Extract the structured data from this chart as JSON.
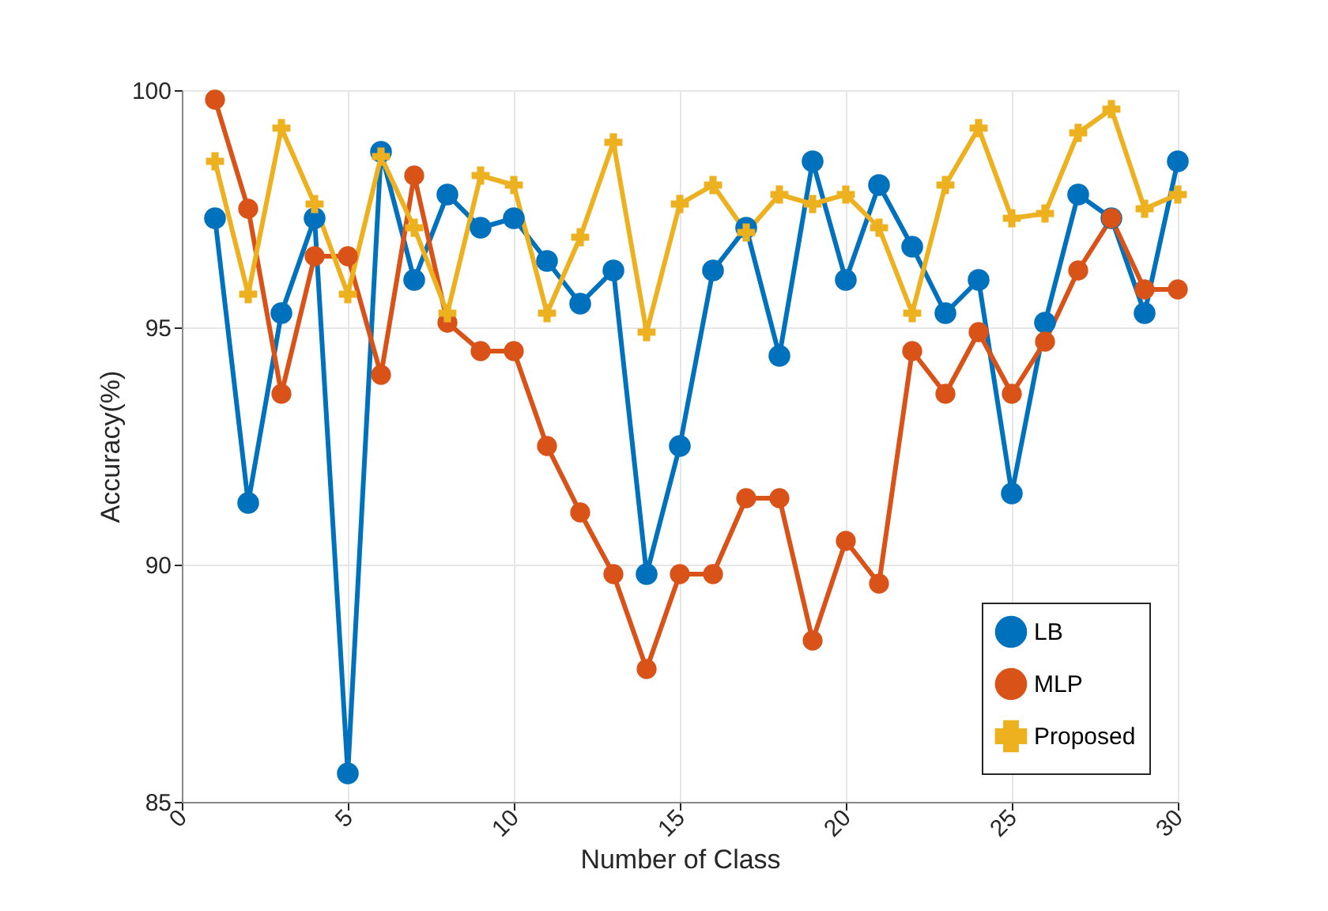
{
  "chart_data": {
    "type": "line",
    "xlabel": "Number of Class",
    "ylabel": "Accuracy(%)",
    "x": [
      1,
      2,
      3,
      4,
      5,
      6,
      7,
      8,
      9,
      10,
      11,
      12,
      13,
      14,
      15,
      16,
      17,
      18,
      19,
      20,
      21,
      22,
      23,
      24,
      25,
      26,
      27,
      28,
      29,
      30
    ],
    "xlim": [
      0,
      30
    ],
    "xticks": [
      0,
      5,
      10,
      15,
      20,
      25,
      30
    ],
    "ylim": [
      85,
      100
    ],
    "yticks": [
      85,
      90,
      95,
      100
    ],
    "grid": true,
    "legend": "bottom right",
    "line_style": "solid",
    "series": [
      {
        "name": "LB",
        "color": "#0072bd",
        "marker": "circle",
        "values": [
          97.3,
          91.3,
          95.3,
          97.3,
          85.6,
          98.7,
          96.0,
          97.8,
          97.1,
          97.3,
          96.4,
          95.5,
          96.2,
          89.8,
          92.5,
          96.2,
          97.1,
          94.4,
          98.5,
          96.0,
          98.0,
          96.7,
          95.3,
          96.0,
          91.5,
          95.1,
          97.8,
          97.3,
          95.3,
          98.5
        ]
      },
      {
        "name": "MLP",
        "color": "#d95319",
        "marker": "circle",
        "values": [
          99.8,
          97.5,
          93.6,
          96.5,
          96.5,
          94.0,
          98.2,
          95.1,
          94.5,
          94.5,
          92.5,
          91.1,
          89.8,
          87.8,
          89.8,
          89.8,
          91.4,
          91.4,
          88.4,
          90.5,
          89.6,
          94.5,
          93.6,
          94.9,
          93.6,
          94.7,
          96.2,
          97.3,
          95.8,
          95.8
        ]
      },
      {
        "name": "Proposed",
        "color": "#edb120",
        "marker": "cross",
        "values": [
          98.5,
          95.7,
          99.2,
          97.6,
          95.7,
          98.6,
          97.1,
          95.3,
          98.2,
          98.0,
          95.3,
          96.9,
          98.9,
          94.9,
          97.6,
          98.0,
          97.0,
          97.8,
          97.6,
          97.8,
          97.1,
          95.3,
          98.0,
          99.2,
          97.3,
          97.4,
          99.1,
          99.6,
          97.5,
          97.8
        ]
      }
    ]
  }
}
